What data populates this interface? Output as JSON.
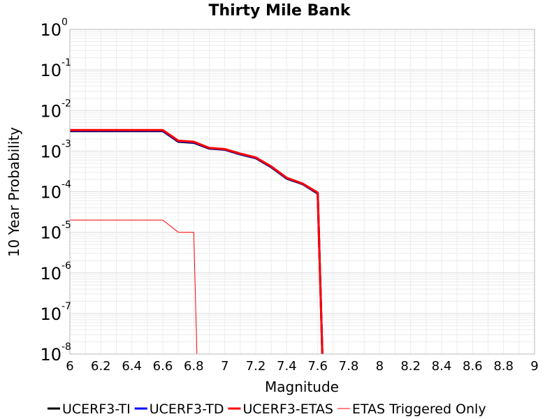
{
  "chart_data": {
    "type": "line",
    "title": "Thirty Mile Bank",
    "xlabel": "Magnitude",
    "ylabel": "10 Year Probability",
    "xlim": [
      6,
      9
    ],
    "ylim": [
      1e-08,
      1
    ],
    "yscale": "log",
    "grid": true,
    "legend_position": "bottom",
    "x_ticks": [
      "6",
      "6.2",
      "6.4",
      "6.6",
      "6.8",
      "7",
      "7.2",
      "7.4",
      "7.6",
      "7.8",
      "8",
      "8.2",
      "8.4",
      "8.6",
      "8.8",
      "9"
    ],
    "y_ticks": [
      {
        "base": "10",
        "exp": "0"
      },
      {
        "base": "10",
        "exp": "-1"
      },
      {
        "base": "10",
        "exp": "-2"
      },
      {
        "base": "10",
        "exp": "-3"
      },
      {
        "base": "10",
        "exp": "-4"
      },
      {
        "base": "10",
        "exp": "-5"
      },
      {
        "base": "10",
        "exp": "-6"
      },
      {
        "base": "10",
        "exp": "-7"
      },
      {
        "base": "10",
        "exp": "-8"
      }
    ],
    "series": [
      {
        "name": "UCERF3-TI",
        "color": "#000000",
        "width": 3,
        "x": [
          6.0,
          6.1,
          6.2,
          6.3,
          6.4,
          6.5,
          6.6,
          6.7,
          6.8,
          6.9,
          7.0,
          7.1,
          7.2,
          7.3,
          7.4,
          7.5,
          7.6,
          7.63
        ],
        "y": [
          0.0031,
          0.0031,
          0.0031,
          0.0031,
          0.0031,
          0.0031,
          0.0031,
          0.0017,
          0.0016,
          0.00115,
          0.00108,
          0.00083,
          0.00067,
          0.0004,
          0.00021,
          0.000155,
          9e-05,
          1e-08
        ]
      },
      {
        "name": "UCERF3-TD",
        "color": "#0000ff",
        "width": 3,
        "x": [
          6.0,
          6.1,
          6.2,
          6.3,
          6.4,
          6.5,
          6.6,
          6.7,
          6.8,
          6.9,
          7.0,
          7.1,
          7.2,
          7.3,
          7.4,
          7.5,
          7.6,
          7.63
        ],
        "y": [
          0.0032,
          0.0032,
          0.0032,
          0.0032,
          0.0032,
          0.0032,
          0.0032,
          0.00175,
          0.00165,
          0.00118,
          0.0011,
          0.00085,
          0.00068,
          0.00041,
          0.000215,
          0.000158,
          9.2e-05,
          1e-08
        ]
      },
      {
        "name": "UCERF3-ETAS",
        "color": "#ff0000",
        "width": 3,
        "x": [
          6.0,
          6.1,
          6.2,
          6.3,
          6.4,
          6.5,
          6.6,
          6.7,
          6.8,
          6.9,
          7.0,
          7.1,
          7.2,
          7.3,
          7.4,
          7.5,
          7.6,
          7.63
        ],
        "y": [
          0.0033,
          0.0033,
          0.0033,
          0.0033,
          0.0033,
          0.0033,
          0.0033,
          0.0018,
          0.0017,
          0.0012,
          0.00112,
          0.00087,
          0.0007,
          0.00042,
          0.00022,
          0.00016,
          9.5e-05,
          1e-08
        ]
      },
      {
        "name": "ETAS Triggered Only",
        "color": "#ff0000",
        "width": 1,
        "x": [
          6.0,
          6.1,
          6.2,
          6.3,
          6.4,
          6.5,
          6.6,
          6.7,
          6.8,
          6.82
        ],
        "y": [
          2e-05,
          2e-05,
          2e-05,
          2e-05,
          2e-05,
          2e-05,
          2e-05,
          1e-05,
          1e-05,
          1e-08
        ]
      }
    ]
  }
}
